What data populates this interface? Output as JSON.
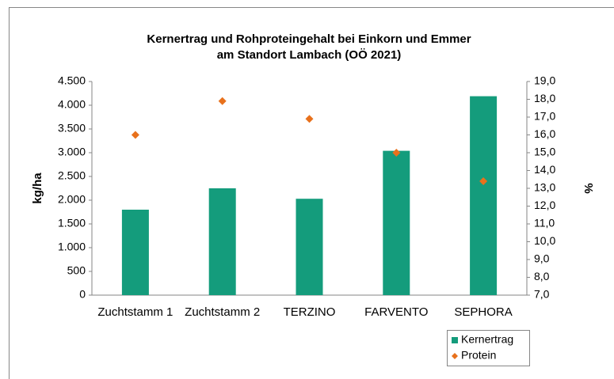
{
  "chart_data": {
    "type": "bar",
    "title": [
      "Kernertrag und Rohproteingehalt bei Einkorn und Emmer",
      "am Standort Lambach (OÖ 2021)"
    ],
    "y_label": "kg/ha",
    "y2_label": "%",
    "categories": [
      "Zuchtstamm 1",
      "Zuchtstamm 2",
      "TERZINO",
      "FARVENTO",
      "SEPHORA"
    ],
    "series": [
      {
        "name": "Kernertrag",
        "type": "bar",
        "color": "#149c7c",
        "values": [
          1800,
          2250,
          2030,
          3040,
          4190
        ]
      },
      {
        "name": "Protein",
        "type": "scatter",
        "axis": "y2",
        "color": "#e8711c",
        "values": [
          16.0,
          17.9,
          16.9,
          15.0,
          13.4
        ]
      }
    ],
    "ylim": [
      0,
      4500
    ],
    "yticks": [
      0,
      {
        "value": 500,
        "label": "500"
      },
      {
        "value": 1000,
        "label": "1.000"
      },
      {
        "value": 1500,
        "label": "1.500"
      },
      {
        "value": 2000,
        "label": "2.000"
      },
      {
        "value": 2500,
        "label": "2.500"
      },
      {
        "value": 3000,
        "label": "3.000"
      },
      {
        "value": 3500,
        "label": "3.500"
      },
      {
        "value": 4000,
        "label": "4.000"
      },
      {
        "value": 4500,
        "label": "4.500"
      }
    ],
    "y2lim": [
      7,
      19
    ],
    "y2ticks": [
      {
        "value": 7,
        "label": "7,0"
      },
      {
        "value": 8,
        "label": "8,0"
      },
      {
        "value": 9,
        "label": "9,0"
      },
      {
        "value": 10,
        "label": "10,0"
      },
      {
        "value": 11,
        "label": "11,0"
      },
      {
        "value": 12,
        "label": "12,0"
      },
      {
        "value": 13,
        "label": "13,0"
      },
      {
        "value": 14,
        "label": "14,0"
      },
      {
        "value": 15,
        "label": "15,0"
      },
      {
        "value": 16,
        "label": "16,0"
      },
      {
        "value": 17,
        "label": "17,0"
      },
      {
        "value": 18,
        "label": "18,0"
      },
      {
        "value": 19,
        "label": "19,0"
      }
    ],
    "legend": "bottom-right",
    "grid": false
  }
}
